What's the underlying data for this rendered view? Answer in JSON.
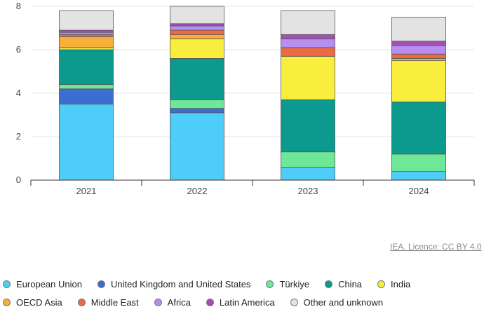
{
  "chart_data": {
    "type": "bar",
    "stacked": true,
    "categories": [
      "2021",
      "2022",
      "2023",
      "2024"
    ],
    "ylim": [
      0,
      8
    ],
    "yticks": [
      "0",
      "2",
      "4",
      "6",
      "8"
    ],
    "series": [
      {
        "name": "European Union",
        "color": "#4dcdf7",
        "values": [
          3.5,
          3.1,
          0.6,
          0.4
        ]
      },
      {
        "name": "United Kingdom and United States",
        "color": "#3a6fd0",
        "values": [
          0.7,
          0.2,
          0.0,
          0.0
        ]
      },
      {
        "name": "Türkiye",
        "color": "#6ee896",
        "values": [
          0.2,
          0.4,
          0.7,
          0.8
        ]
      },
      {
        "name": "China",
        "color": "#0c9a8e",
        "values": [
          1.6,
          1.9,
          2.4,
          2.4
        ]
      },
      {
        "name": "India",
        "color": "#f9ee3d",
        "values": [
          0.1,
          0.9,
          2.0,
          1.9
        ]
      },
      {
        "name": "OECD Asia",
        "color": "#f5b03a",
        "values": [
          0.5,
          0.2,
          0.0,
          0.1
        ]
      },
      {
        "name": "Middle East",
        "color": "#ee6a45",
        "values": [
          0.1,
          0.2,
          0.4,
          0.2
        ]
      },
      {
        "name": "Africa",
        "color": "#b58ef0",
        "values": [
          0.1,
          0.2,
          0.4,
          0.4
        ]
      },
      {
        "name": "Latin America",
        "color": "#a34fb8",
        "values": [
          0.1,
          0.1,
          0.2,
          0.2
        ]
      },
      {
        "name": "Other and unknown",
        "color": "#e3e3e3",
        "values": [
          0.9,
          0.8,
          1.1,
          1.1
        ]
      }
    ]
  },
  "credit": "IEA. Licence: CC BY 4.0"
}
